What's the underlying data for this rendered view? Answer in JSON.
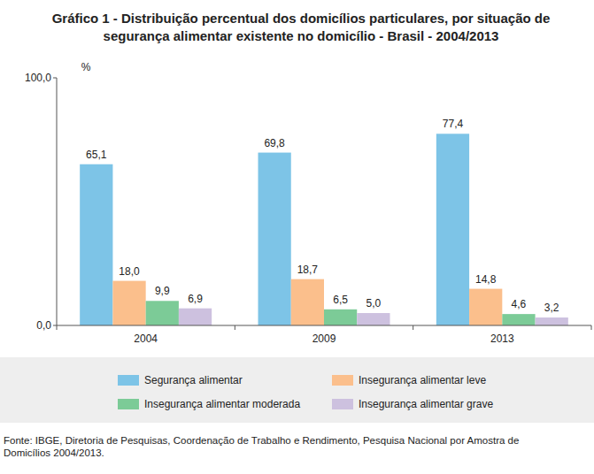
{
  "chart_data": {
    "type": "bar",
    "title": [
      "Gráfico 1 - Distribuição percentual dos domicílios particulares, por situação de",
      "segurança alimentar existente no domicílio - Brasil - 2004/2013"
    ],
    "y_label": "%",
    "categories": [
      "2004",
      "2009",
      "2013"
    ],
    "series": [
      {
        "name": "Segurança alimentar",
        "color": "#7dc4e7",
        "values": [
          65.1,
          69.8,
          77.4
        ],
        "value_labels": [
          "65,1",
          "69,8",
          "77,4"
        ]
      },
      {
        "name": "Insegurança alimentar leve",
        "color": "#fbbf8c",
        "values": [
          18.0,
          18.7,
          14.8
        ],
        "value_labels": [
          "18,0",
          "18,7",
          "14,8"
        ]
      },
      {
        "name": "Insegurança alimentar moderada",
        "color": "#7ccb97",
        "values": [
          9.9,
          6.5,
          4.6
        ],
        "value_labels": [
          "9,9",
          "6,5",
          "4,6"
        ]
      },
      {
        "name": "Insegurança alimentar grave",
        "color": "#cdc1df",
        "values": [
          6.9,
          5.0,
          3.2
        ],
        "value_labels": [
          "6,9",
          "5,0",
          "3,2"
        ]
      }
    ],
    "ylim": [
      0,
      100
    ],
    "yticks": [
      {
        "value": 0,
        "label": "0,0"
      },
      {
        "value": 100,
        "label": "100,0"
      }
    ],
    "grid": false,
    "data_labels": true,
    "legend": "bottom",
    "source": [
      "Fonte: IBGE, Diretoria de Pesquisas, Coordenação de Trabalho e Rendimento, Pesquisa Nacional por Amostra de",
      "Domicílios 2004/2013."
    ]
  }
}
